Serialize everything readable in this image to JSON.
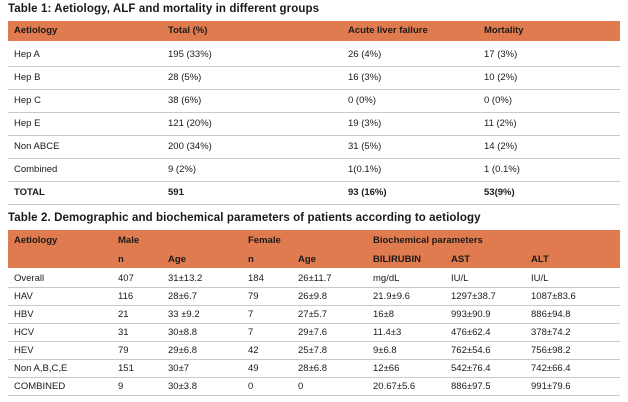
{
  "table1": {
    "caption": "Table 1: Aetiology, ALF and mortality in different groups",
    "headers": [
      "Aetiology",
      "Total (%)",
      "Acute liver failure",
      "Mortality"
    ],
    "rows": [
      [
        "Hep A",
        "195 (33%)",
        "26 (4%)",
        "17 (3%)"
      ],
      [
        "Hep B",
        "28 (5%)",
        "16 (3%)",
        "10 (2%)"
      ],
      [
        "Hep C",
        "38 (6%)",
        "0 (0%)",
        "0 (0%)"
      ],
      [
        "Hep E",
        "121 (20%)",
        "19 (3%)",
        "11 (2%)"
      ],
      [
        "Non ABCE",
        "200 (34%)",
        "31 (5%)",
        "14 (2%)"
      ],
      [
        "Combined",
        "9 (2%)",
        "1(0.1%)",
        "1 (0.1%)"
      ],
      [
        "TOTAL",
        "591",
        "93 (16%)",
        "53(9%)"
      ]
    ]
  },
  "table2": {
    "caption": "Table 2. Demographic and biochemical parameters of patients according to aetiology",
    "header_top": [
      "Aetiology",
      "Male",
      "Female",
      "Biochemical parameters"
    ],
    "header_sub": [
      "n",
      "Age",
      "n",
      "Age",
      "BILIRUBIN",
      "AST",
      "ALT"
    ],
    "rows": [
      [
        "Overall",
        "407",
        "31±13.2",
        "184",
        "26±11.7",
        "mg/dL",
        "IU/L",
        "IU/L"
      ],
      [
        "HAV",
        "116",
        "28±6.7",
        "79",
        "26±9.8",
        "21.9±9.6",
        "1297±38.7",
        "1087±83.6"
      ],
      [
        "HBV",
        "21",
        "33 ±9.2",
        "7",
        "27±5.7",
        "16±8",
        "993±90.9",
        "886±94.8"
      ],
      [
        "HCV",
        "31",
        "30±8.8",
        "7",
        "29±7.6",
        "11.4±3",
        "476±62.4",
        "378±74.2"
      ],
      [
        "HEV",
        "79",
        "29±6.8",
        "42",
        "25±7.8",
        "9±6.8",
        "762±54.6",
        "756±98.2"
      ],
      [
        "Non A,B,C,E",
        "151",
        "30±7",
        "49",
        "28±6.8",
        "12±66",
        "542±76.4",
        "742±66.4"
      ],
      [
        "COMBINED",
        "9",
        "30±3.8",
        "0",
        "0",
        "20.67±5.6",
        "886±97.5",
        "991±79.6"
      ]
    ]
  },
  "colors": {
    "header_bg": "#e07b4f",
    "rule": "#c9c9c9"
  }
}
